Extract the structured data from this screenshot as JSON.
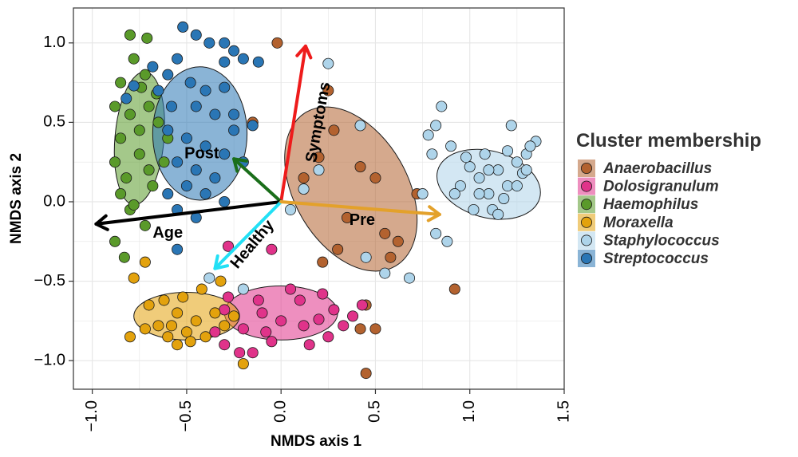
{
  "chart_data": {
    "type": "scatter",
    "title": "",
    "xlabel": "NMDS axis 1",
    "ylabel": "NMDS axis 2",
    "xlim": [
      -1.1,
      1.5
    ],
    "ylim": [
      -1.18,
      1.22
    ],
    "x_ticks": [
      -1.0,
      -0.5,
      0.0,
      0.5,
      1.0,
      1.5
    ],
    "x_tick_labels": [
      "−1.0",
      "−0.5",
      "0.0",
      "0.5",
      "1.0",
      "1.5"
    ],
    "y_ticks": [
      -1.0,
      -0.5,
      0.0,
      0.5,
      1.0
    ],
    "y_tick_labels": [
      "−1.0",
      "−0.5",
      "0.0",
      "0.5",
      "1.0"
    ],
    "grid": true,
    "legend_position": "right",
    "legend": {
      "title": "Cluster membership",
      "entries": [
        "Anaerobacillus",
        "Dolosigranulum",
        "Haemophilus",
        "Moraxella",
        "Staphylococcus",
        "Streptococcus"
      ]
    },
    "series": [
      {
        "name": "Anaerobacillus",
        "color": "#b3622f",
        "ellipse": {
          "cx": 0.37,
          "cy": 0.08,
          "rx": 0.3,
          "ry": 0.56,
          "angle_deg": 30
        },
        "points": [
          [
            -0.02,
            1.0
          ],
          [
            0.25,
            0.7
          ],
          [
            0.28,
            0.45
          ],
          [
            -0.15,
            0.5
          ],
          [
            0.2,
            0.28
          ],
          [
            0.42,
            0.22
          ],
          [
            0.5,
            0.15
          ],
          [
            0.35,
            -0.1
          ],
          [
            0.55,
            -0.2
          ],
          [
            0.3,
            -0.3
          ],
          [
            0.45,
            -0.65
          ],
          [
            0.42,
            -0.8
          ],
          [
            0.58,
            -0.35
          ],
          [
            0.72,
            0.05
          ],
          [
            0.5,
            -0.8
          ],
          [
            0.62,
            -0.25
          ],
          [
            0.92,
            -0.55
          ],
          [
            0.45,
            -1.08
          ],
          [
            0.22,
            -0.38
          ],
          [
            0.12,
            0.15
          ]
        ]
      },
      {
        "name": "Dolosigranulum",
        "color": "#e0338a",
        "ellipse": {
          "cx": 0.0,
          "cy": -0.7,
          "rx": 0.3,
          "ry": 0.17,
          "angle_deg": 0
        },
        "points": [
          [
            -0.3,
            -0.68
          ],
          [
            -0.2,
            -0.8
          ],
          [
            -0.1,
            -0.7
          ],
          [
            0.0,
            -0.75
          ],
          [
            0.1,
            -0.62
          ],
          [
            0.2,
            -0.74
          ],
          [
            0.25,
            -0.85
          ],
          [
            0.15,
            -0.9
          ],
          [
            -0.05,
            -0.88
          ],
          [
            -0.22,
            -0.95
          ],
          [
            -0.35,
            -0.82
          ],
          [
            -0.28,
            -0.6
          ],
          [
            0.05,
            -0.55
          ],
          [
            0.28,
            -0.68
          ],
          [
            0.38,
            -0.72
          ],
          [
            0.43,
            -0.65
          ],
          [
            -0.12,
            -0.62
          ],
          [
            -0.08,
            -0.82
          ],
          [
            -0.3,
            -0.9
          ],
          [
            -0.05,
            -0.3
          ],
          [
            -0.28,
            -0.28
          ],
          [
            -0.15,
            -0.95
          ],
          [
            0.22,
            -0.58
          ],
          [
            0.33,
            -0.78
          ],
          [
            0.12,
            -0.78
          ]
        ]
      },
      {
        "name": "Haemophilus",
        "color": "#5a9a2a",
        "ellipse": {
          "cx": -0.75,
          "cy": 0.4,
          "rx": 0.13,
          "ry": 0.42,
          "angle_deg": -5
        },
        "points": [
          [
            -0.8,
            1.05
          ],
          [
            -0.78,
            0.9
          ],
          [
            -0.85,
            0.75
          ],
          [
            -0.72,
            0.8
          ],
          [
            -0.88,
            0.6
          ],
          [
            -0.8,
            0.55
          ],
          [
            -0.7,
            0.6
          ],
          [
            -0.75,
            0.45
          ],
          [
            -0.85,
            0.4
          ],
          [
            -0.65,
            0.5
          ],
          [
            -0.88,
            0.25
          ],
          [
            -0.75,
            0.3
          ],
          [
            -0.82,
            0.15
          ],
          [
            -0.7,
            0.2
          ],
          [
            -0.85,
            0.05
          ],
          [
            -0.68,
            0.1
          ],
          [
            -0.8,
            -0.05
          ],
          [
            -0.72,
            -0.15
          ],
          [
            -0.88,
            -0.25
          ],
          [
            -0.83,
            -0.35
          ],
          [
            -0.6,
            0.4
          ],
          [
            -0.62,
            0.25
          ],
          [
            -0.74,
            0.72
          ],
          [
            -0.66,
            0.68
          ],
          [
            -0.78,
            -0.02
          ],
          [
            -0.71,
            1.03
          ]
        ]
      },
      {
        "name": "Moraxella",
        "color": "#e3a20d",
        "ellipse": {
          "cx": -0.5,
          "cy": -0.72,
          "rx": 0.28,
          "ry": 0.15,
          "angle_deg": 0
        },
        "points": [
          [
            -0.8,
            -0.85
          ],
          [
            -0.72,
            -0.8
          ],
          [
            -0.65,
            -0.78
          ],
          [
            -0.6,
            -0.85
          ],
          [
            -0.55,
            -0.7
          ],
          [
            -0.5,
            -0.82
          ],
          [
            -0.45,
            -0.75
          ],
          [
            -0.4,
            -0.85
          ],
          [
            -0.35,
            -0.7
          ],
          [
            -0.3,
            -0.78
          ],
          [
            -0.25,
            -0.72
          ],
          [
            -0.62,
            -0.62
          ],
          [
            -0.52,
            -0.6
          ],
          [
            -0.42,
            -0.55
          ],
          [
            -0.7,
            -0.65
          ],
          [
            -0.78,
            -0.48
          ],
          [
            -0.55,
            -0.9
          ],
          [
            -0.48,
            -0.88
          ],
          [
            -0.32,
            -0.5
          ],
          [
            -0.72,
            -0.38
          ],
          [
            -0.2,
            -1.02
          ],
          [
            -0.58,
            -0.78
          ]
        ]
      },
      {
        "name": "Staphylococcus",
        "color": "#aed4ea",
        "ellipse": {
          "cx": 1.1,
          "cy": 0.11,
          "rx": 0.28,
          "ry": 0.21,
          "angle_deg": -15
        },
        "points": [
          [
            0.25,
            0.87
          ],
          [
            0.42,
            0.48
          ],
          [
            0.2,
            0.2
          ],
          [
            0.12,
            0.08
          ],
          [
            0.05,
            -0.05
          ],
          [
            0.45,
            -0.35
          ],
          [
            0.55,
            -0.45
          ],
          [
            0.68,
            -0.48
          ],
          [
            0.82,
            -0.2
          ],
          [
            0.88,
            -0.25
          ],
          [
            0.8,
            0.3
          ],
          [
            0.85,
            0.6
          ],
          [
            0.82,
            0.48
          ],
          [
            0.9,
            0.35
          ],
          [
            0.95,
            0.1
          ],
          [
            1.0,
            0.22
          ],
          [
            1.05,
            0.15
          ],
          [
            1.1,
            0.05
          ],
          [
            1.15,
            0.2
          ],
          [
            1.2,
            0.1
          ],
          [
            1.25,
            0.25
          ],
          [
            1.3,
            0.3
          ],
          [
            1.35,
            0.38
          ],
          [
            1.22,
            0.48
          ],
          [
            1.18,
            0.02
          ],
          [
            1.12,
            -0.05
          ],
          [
            1.05,
            0.05
          ],
          [
            0.98,
            0.28
          ],
          [
            1.08,
            0.3
          ],
          [
            1.28,
            0.18
          ],
          [
            1.32,
            0.35
          ],
          [
            1.15,
            -0.08
          ],
          [
            0.92,
            0.05
          ],
          [
            1.02,
            -0.05
          ],
          [
            0.75,
            0.05
          ],
          [
            1.2,
            0.32
          ],
          [
            1.25,
            0.1
          ],
          [
            1.3,
            0.2
          ],
          [
            0.78,
            0.42
          ],
          [
            1.1,
            0.2
          ],
          [
            -0.2,
            -0.55
          ],
          [
            -0.38,
            -0.48
          ]
        ]
      },
      {
        "name": "Streptococcus",
        "color": "#2a76b5",
        "ellipse": {
          "cx": -0.43,
          "cy": 0.43,
          "rx": 0.25,
          "ry": 0.42,
          "angle_deg": 0
        },
        "points": [
          [
            -0.52,
            1.1
          ],
          [
            -0.45,
            1.05
          ],
          [
            -0.38,
            1.0
          ],
          [
            -0.3,
            1.0
          ],
          [
            -0.25,
            0.95
          ],
          [
            -0.2,
            0.9
          ],
          [
            -0.12,
            0.88
          ],
          [
            -0.55,
            0.9
          ],
          [
            -0.6,
            0.8
          ],
          [
            -0.48,
            0.75
          ],
          [
            -0.4,
            0.7
          ],
          [
            -0.3,
            0.72
          ],
          [
            -0.65,
            0.7
          ],
          [
            -0.58,
            0.6
          ],
          [
            -0.45,
            0.6
          ],
          [
            -0.35,
            0.55
          ],
          [
            -0.25,
            0.55
          ],
          [
            -0.15,
            0.48
          ],
          [
            -0.6,
            0.45
          ],
          [
            -0.5,
            0.4
          ],
          [
            -0.4,
            0.35
          ],
          [
            -0.3,
            0.3
          ],
          [
            -0.2,
            0.25
          ],
          [
            -0.55,
            0.25
          ],
          [
            -0.45,
            0.2
          ],
          [
            -0.35,
            0.15
          ],
          [
            -0.5,
            0.1
          ],
          [
            -0.4,
            0.05
          ],
          [
            -0.3,
            0.0
          ],
          [
            -0.55,
            -0.05
          ],
          [
            -0.45,
            -0.1
          ],
          [
            -0.78,
            0.73
          ],
          [
            -0.82,
            0.65
          ],
          [
            -0.68,
            0.85
          ],
          [
            -0.3,
            0.88
          ],
          [
            -0.55,
            -0.3
          ],
          [
            -0.6,
            0.05
          ],
          [
            -0.25,
            0.45
          ]
        ]
      }
    ],
    "arrows": [
      {
        "label": "Symptoms",
        "color": "#ee1b1b",
        "from": [
          0.0,
          0.0
        ],
        "to": [
          0.13,
          0.98
        ]
      },
      {
        "label": "Post",
        "color": "#1a6e1a",
        "from": [
          0.0,
          0.0
        ],
        "to": [
          -0.25,
          0.27
        ]
      },
      {
        "label": "Age",
        "color": "#000000",
        "from": [
          0.0,
          0.0
        ],
        "to": [
          -0.98,
          -0.14
        ]
      },
      {
        "label": "Healthy",
        "color": "#22e0f5",
        "from": [
          0.0,
          0.0
        ],
        "to": [
          -0.35,
          -0.42
        ]
      },
      {
        "label": "Pre",
        "color": "#e3a12b",
        "from": [
          0.0,
          0.0
        ],
        "to": [
          0.84,
          -0.08
        ]
      }
    ]
  }
}
